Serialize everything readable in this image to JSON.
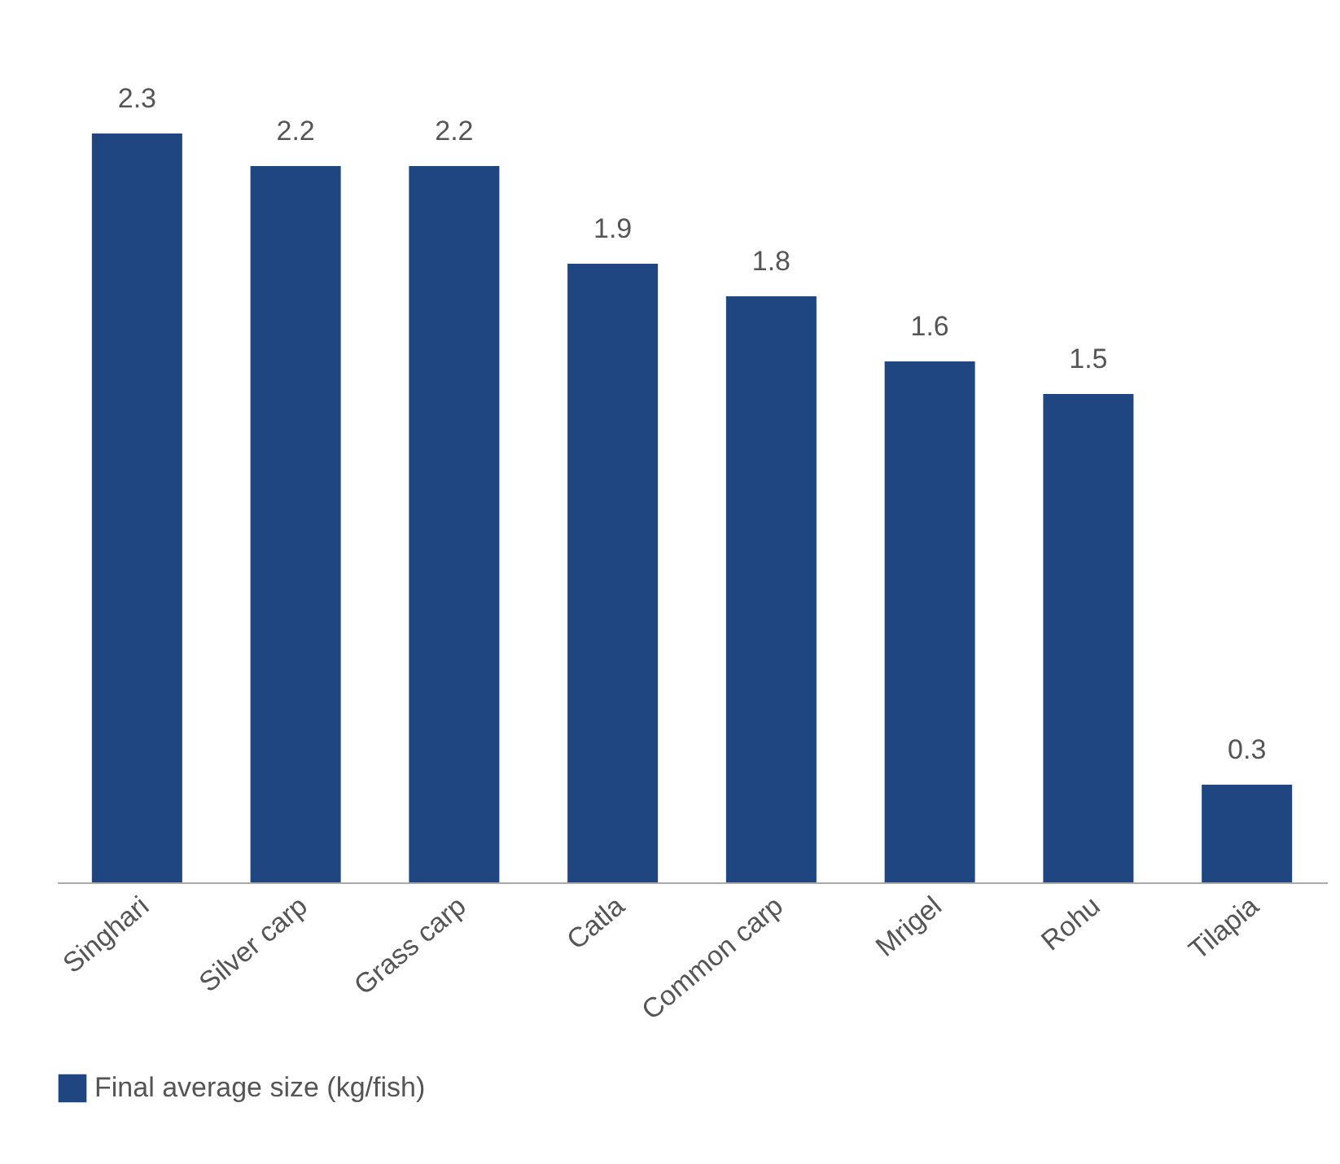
{
  "chart_data": {
    "type": "bar",
    "categories": [
      "Singhari",
      "Silver carp",
      "Grass carp",
      "Catla",
      "Common carp",
      "Mrigel",
      "Rohu",
      "Tilapia"
    ],
    "series": [
      {
        "name": "Final average size (kg/fish)",
        "color": "#1f4680",
        "values": [
          2.3,
          2.2,
          2.2,
          1.9,
          1.8,
          1.6,
          1.5,
          0.3
        ]
      }
    ],
    "data_labels": true,
    "legend": "bottom",
    "grid": false
  }
}
